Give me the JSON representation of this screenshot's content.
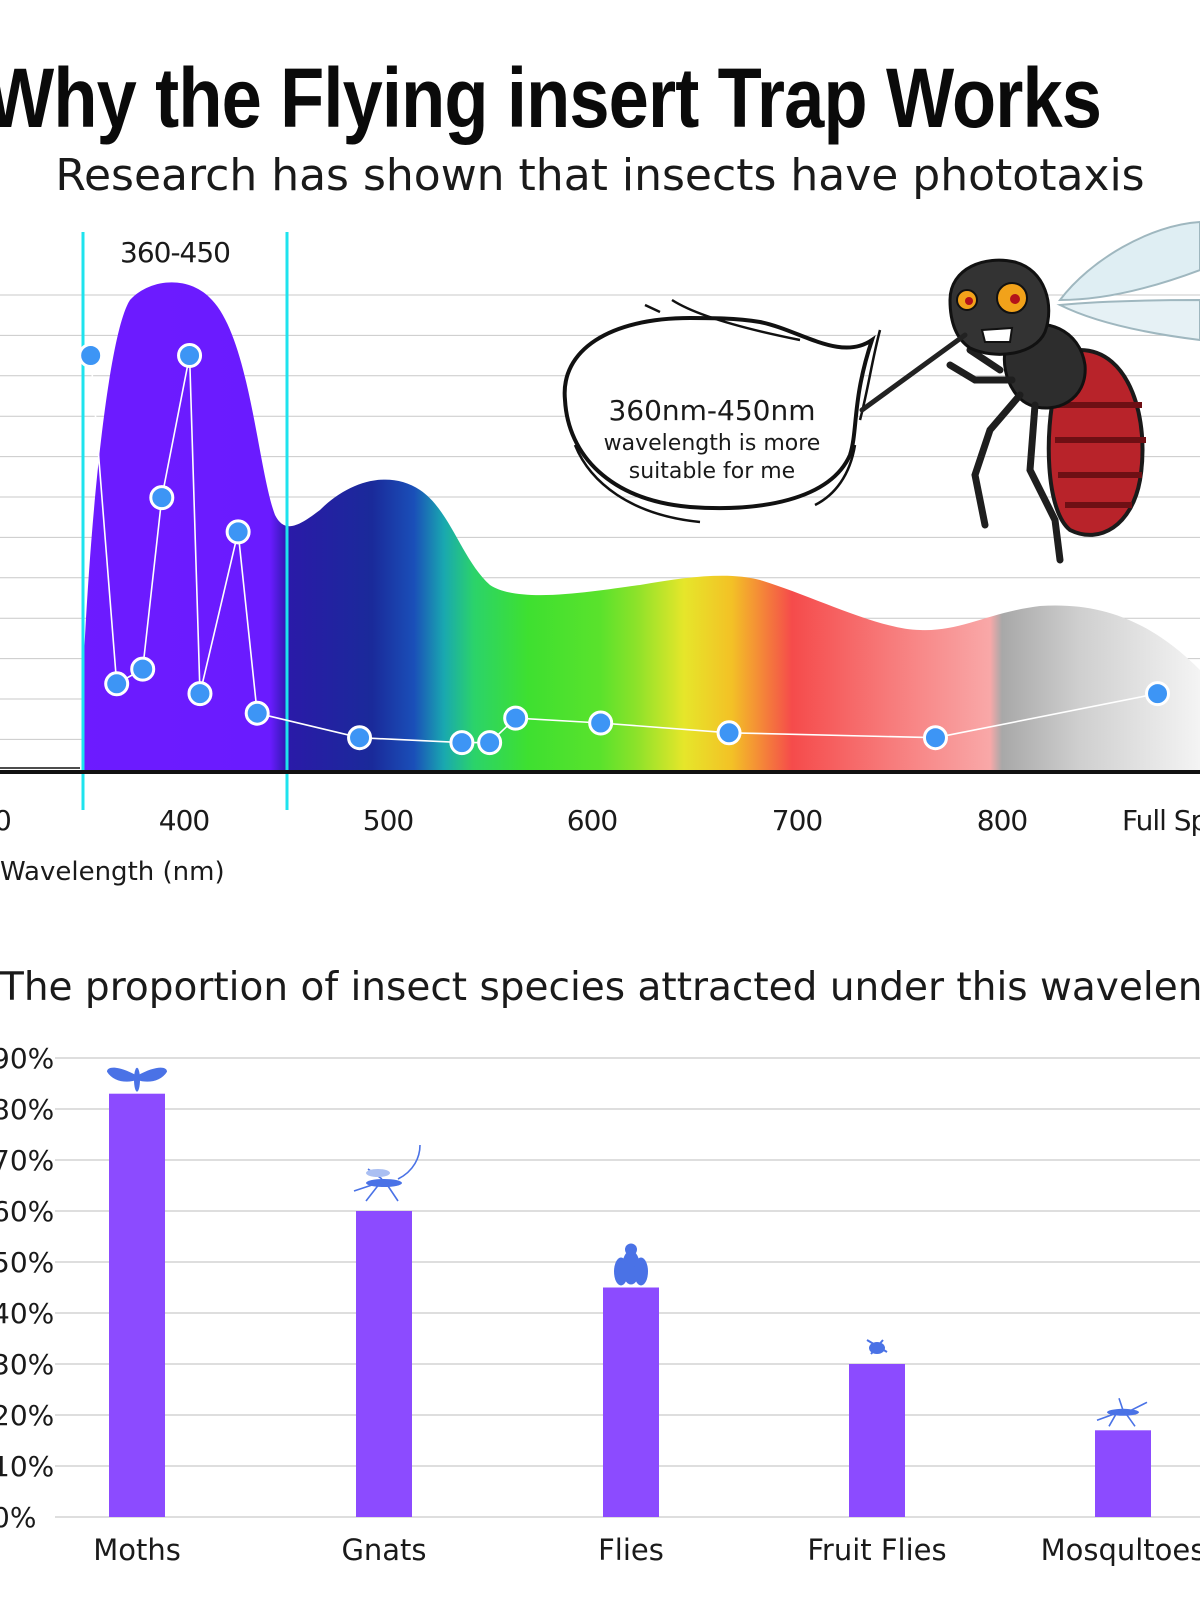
{
  "header": {
    "title": "Why the Flying insert Trap Works",
    "subtitle": "Research has shown that insects have phototaxis"
  },
  "spectrum": {
    "band_label": "360-450",
    "x_ticks": [
      "400",
      "500",
      "600",
      "700",
      "800",
      "Full Sp"
    ],
    "x_axis_label": "Wavelength (nm)",
    "callout": {
      "line1": "360nm-450nm",
      "line2": "wavelength is more",
      "line3": "suitable for me"
    },
    "colors": {
      "uv": "#6a1bff",
      "band_marker": "#1ee3ee",
      "point": "#3d95f5"
    }
  },
  "chart_data": [
    {
      "type": "line",
      "title": "",
      "xlabel": "Wavelength (nm)",
      "xlim": [
        350,
        980
      ],
      "x_ticks": [
        400,
        500,
        600,
        700,
        800,
        "Full Sp"
      ],
      "highlight_band": [
        360,
        450
      ],
      "series": [
        {
          "x": [
            365,
            380,
            395,
            406,
            422,
            428,
            450,
            461,
            520,
            579,
            595,
            610,
            659,
            733,
            852,
            980
          ],
          "y": [
            85,
            18,
            21,
            56,
            85,
            16,
            49,
            12,
            7,
            6,
            6,
            11,
            10,
            8,
            7,
            16
          ]
        }
      ]
    },
    {
      "type": "bar",
      "title": "The proportion of insect species attracted under this wavelength",
      "categories": [
        "Moths",
        "Gnats",
        "Flies",
        "Fruit Flies",
        "Mosqultoes"
      ],
      "values": [
        83,
        60,
        45,
        30,
        17
      ],
      "ylim": [
        0,
        90
      ],
      "y_ticks": [
        "0%",
        "10%",
        "20%",
        "30%",
        "40%",
        "50%",
        "60%",
        "70%",
        "80%",
        "90%"
      ],
      "bar_color": "#8c4bff",
      "icon_color": "#4a72e6",
      "icons": [
        "moth-icon",
        "gnat-icon",
        "fly-icon",
        "fruit-fly-icon",
        "mosquito-icon"
      ]
    }
  ]
}
